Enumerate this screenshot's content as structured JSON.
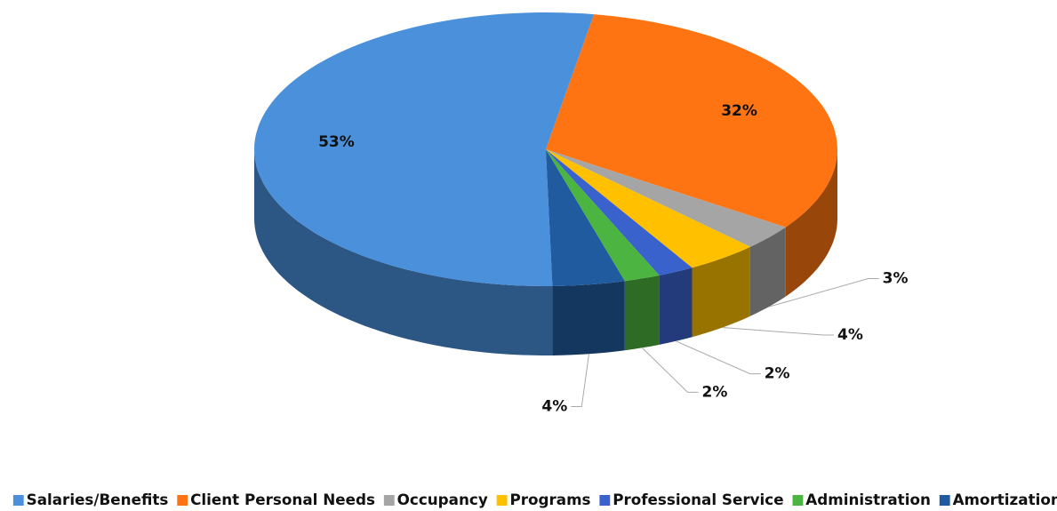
{
  "chart_data": {
    "type": "pie",
    "categories": [
      "Salaries/Benefits",
      "Client Personal Needs",
      "Occupancy",
      "Programs",
      "Professional Service",
      "Administration",
      "Amortization"
    ],
    "values": [
      53,
      32,
      3,
      4,
      2,
      2,
      4
    ],
    "value_labels": [
      "53%",
      "32%",
      "3%",
      "4%",
      "2%",
      "2%",
      "4%"
    ],
    "colors": [
      "#4a90da",
      "#ff7412",
      "#a5a5a5",
      "#ffc000",
      "#3a62cc",
      "#4cb440",
      "#1f5b9e"
    ],
    "legend": "bottom"
  }
}
